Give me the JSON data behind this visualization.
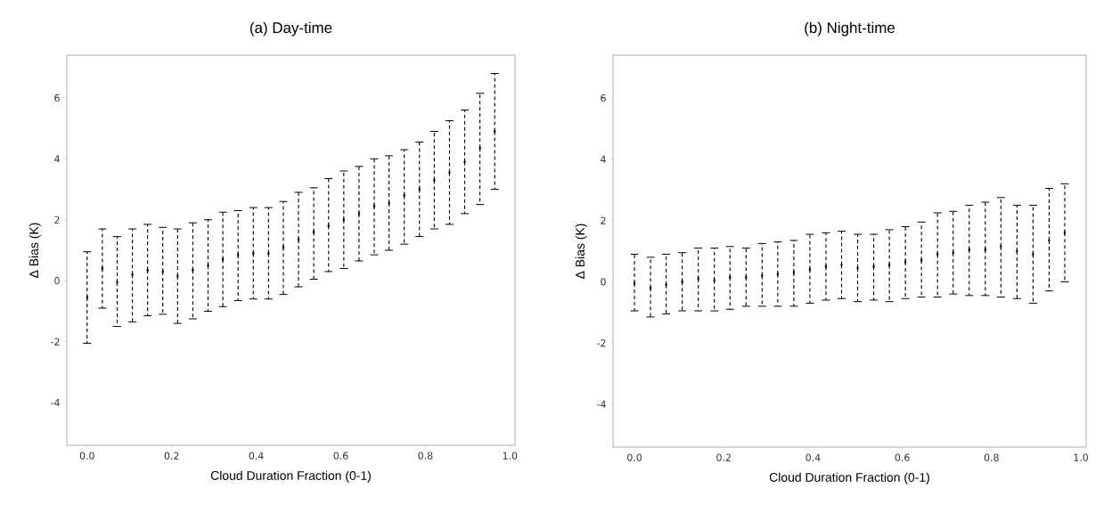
{
  "chart_data": [
    {
      "type": "scatter",
      "title": "(a) Day-time",
      "xlabel": "Cloud Duration Fraction (0-1)",
      "ylabel": "Δ Bias (K)",
      "marker": "diamond",
      "line_style": "dashed",
      "xlim": [
        -0.048,
        1.012
      ],
      "ylim": [
        -5.4,
        7.4
      ],
      "xticks": [
        {
          "value": 0,
          "label": "0.0"
        },
        {
          "value": 0.2,
          "label": "0.2"
        },
        {
          "value": 0.4,
          "label": "0.4"
        },
        {
          "value": 0.6,
          "label": "0.6"
        },
        {
          "value": 0.8,
          "label": "0.8"
        },
        {
          "value": 1,
          "label": "1.0"
        }
      ],
      "yticks": [
        -4,
        -2,
        0,
        2,
        4,
        6
      ],
      "x": [
        0,
        0.036,
        0.071,
        0.107,
        0.143,
        0.179,
        0.214,
        0.25,
        0.286,
        0.321,
        0.357,
        0.393,
        0.429,
        0.464,
        0.5,
        0.536,
        0.571,
        0.607,
        0.643,
        0.679,
        0.714,
        0.75,
        0.786,
        0.821,
        0.857,
        0.893,
        0.929,
        0.964
      ],
      "series": [
        {
          "color": "#000000",
          "values": [
            -0.55,
            0.4,
            -0.05,
            0.2,
            0.35,
            0.3,
            0.15,
            0.35,
            0.5,
            0.7,
            0.85,
            0.9,
            0.9,
            1.1,
            1.35,
            1.6,
            1.8,
            2.0,
            2.2,
            2.45,
            2.55,
            2.8,
            3.0,
            3.3,
            3.55,
            3.9,
            4.35,
            4.9
          ],
          "errors": [
            [
              -2.05,
              0.95
            ],
            [
              -0.9,
              1.7
            ],
            [
              -1.5,
              1.45
            ],
            [
              -1.35,
              1.7
            ],
            [
              -1.15,
              1.85
            ],
            [
              -1.1,
              1.75
            ],
            [
              -1.4,
              1.7
            ],
            [
              -1.25,
              1.9
            ],
            [
              -1.0,
              2.0
            ],
            [
              -0.85,
              2.25
            ],
            [
              -0.65,
              2.3
            ],
            [
              -0.6,
              2.4
            ],
            [
              -0.6,
              2.4
            ],
            [
              -0.45,
              2.6
            ],
            [
              -0.2,
              2.9
            ],
            [
              0.05,
              3.05
            ],
            [
              0.3,
              3.35
            ],
            [
              0.4,
              3.6
            ],
            [
              0.65,
              3.75
            ],
            [
              0.85,
              4.0
            ],
            [
              1.0,
              4.1
            ],
            [
              1.2,
              4.3
            ],
            [
              1.45,
              4.55
            ],
            [
              1.7,
              4.9
            ],
            [
              1.85,
              5.25
            ],
            [
              2.2,
              5.6
            ],
            [
              2.5,
              6.15
            ],
            [
              3.0,
              6.8
            ]
          ]
        }
      ]
    },
    {
      "type": "scatter",
      "title": "(b) Night-time",
      "xlabel": "Cloud Duration Fraction (0-1)",
      "ylabel": "Δ Bias (K)",
      "marker": "diamond",
      "line_style": "dashed",
      "xlim": [
        -0.048,
        1.012
      ],
      "ylim": [
        -5.4,
        7.4
      ],
      "xticks": [
        {
          "value": 0,
          "label": "0.0"
        },
        {
          "value": 0.2,
          "label": "0.2"
        },
        {
          "value": 0.4,
          "label": "0.4"
        },
        {
          "value": 0.6,
          "label": "0.6"
        },
        {
          "value": 0.8,
          "label": "0.8"
        },
        {
          "value": 1,
          "label": "1.0"
        }
      ],
      "yticks": [
        -4,
        -2,
        0,
        2,
        4,
        6
      ],
      "x": [
        0,
        0.036,
        0.071,
        0.107,
        0.143,
        0.179,
        0.214,
        0.25,
        0.286,
        0.321,
        0.357,
        0.393,
        0.429,
        0.464,
        0.5,
        0.536,
        0.571,
        0.607,
        0.643,
        0.679,
        0.714,
        0.75,
        0.786,
        0.821,
        0.857,
        0.893,
        0.929,
        0.964
      ],
      "series": [
        {
          "color": "#000000",
          "values": [
            -0.05,
            -0.2,
            -0.1,
            0.0,
            0.1,
            0.05,
            0.15,
            0.15,
            0.2,
            0.25,
            0.3,
            0.4,
            0.5,
            0.55,
            0.45,
            0.5,
            0.55,
            0.65,
            0.7,
            0.9,
            0.95,
            1.05,
            1.05,
            1.15,
            1.0,
            0.9,
            1.35,
            1.6
          ],
          "errors": [
            [
              -0.95,
              0.9
            ],
            [
              -1.15,
              0.8
            ],
            [
              -1.05,
              0.9
            ],
            [
              -0.95,
              0.95
            ],
            [
              -0.95,
              1.1
            ],
            [
              -0.95,
              1.1
            ],
            [
              -0.9,
              1.15
            ],
            [
              -0.8,
              1.1
            ],
            [
              -0.8,
              1.25
            ],
            [
              -0.8,
              1.3
            ],
            [
              -0.8,
              1.35
            ],
            [
              -0.7,
              1.55
            ],
            [
              -0.6,
              1.6
            ],
            [
              -0.55,
              1.65
            ],
            [
              -0.65,
              1.55
            ],
            [
              -0.6,
              1.55
            ],
            [
              -0.65,
              1.7
            ],
            [
              -0.55,
              1.8
            ],
            [
              -0.5,
              1.95
            ],
            [
              -0.5,
              2.25
            ],
            [
              -0.4,
              2.3
            ],
            [
              -0.45,
              2.5
            ],
            [
              -0.45,
              2.6
            ],
            [
              -0.5,
              2.75
            ],
            [
              -0.55,
              2.5
            ],
            [
              -0.7,
              2.5
            ],
            [
              -0.3,
              3.05
            ],
            [
              0.0,
              3.2
            ]
          ]
        }
      ]
    }
  ]
}
